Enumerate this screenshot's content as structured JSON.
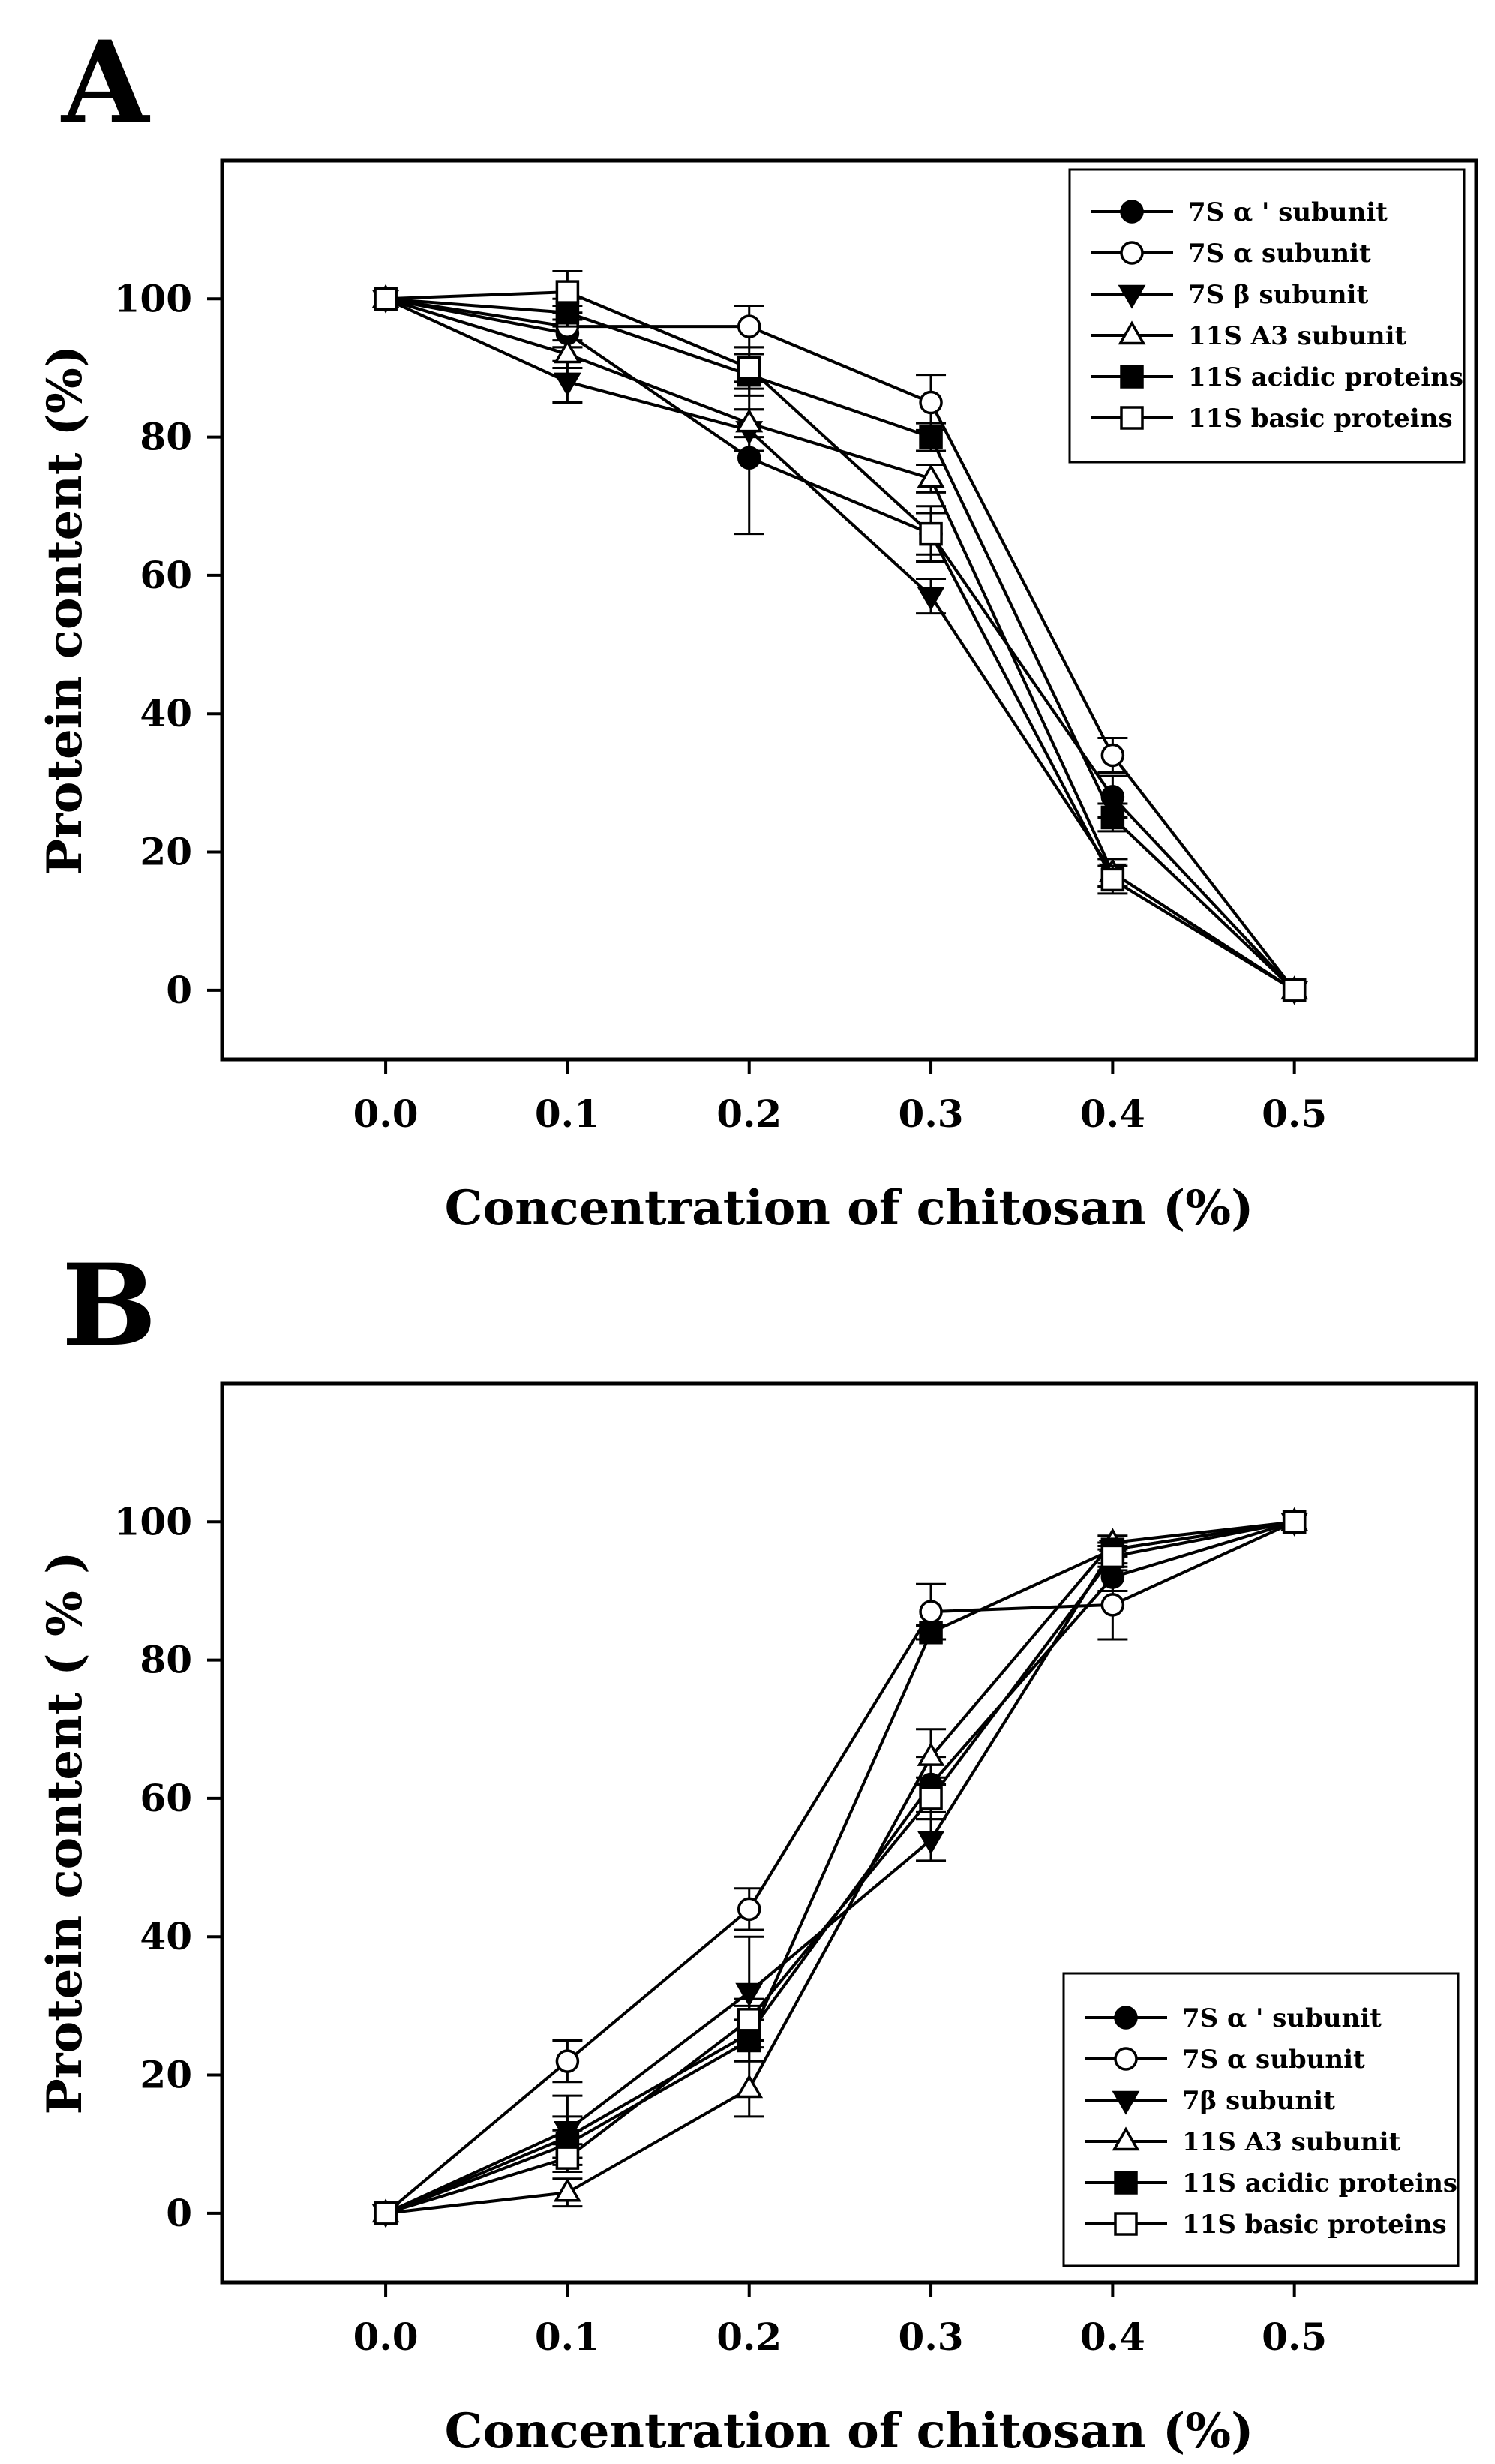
{
  "chart_data": [
    {
      "type": "line",
      "panel_label": "A",
      "xlabel": "Concentration of chitosan (%)",
      "ylabel": "Protein content (%)",
      "x": [
        0.0,
        0.1,
        0.2,
        0.3,
        0.4,
        0.5
      ],
      "x_tick_labels": [
        "0.0",
        "0.1",
        "0.2",
        "0.3",
        "0.4",
        "0.5"
      ],
      "y_ticks": [
        0,
        20,
        40,
        60,
        80,
        100
      ],
      "y_tick_labels": [
        "0",
        "20",
        "40",
        "60",
        "80",
        "100"
      ],
      "xlim": [
        -0.09,
        0.6
      ],
      "ylim": [
        -10,
        120
      ],
      "legend_position": "top-right",
      "series": [
        {
          "name": "7S α ' subunit",
          "marker": "circle-filled",
          "values": [
            100,
            95,
            77,
            66,
            28,
            0
          ],
          "errors": [
            0,
            2,
            11,
            4,
            3,
            0
          ]
        },
        {
          "name": "7S α subunit",
          "marker": "circle-open",
          "values": [
            100,
            96,
            96,
            85,
            34,
            0
          ],
          "errors": [
            0,
            3,
            3,
            4,
            2.5,
            0
          ]
        },
        {
          "name": "7S β subunit",
          "marker": "triangle-down-filled",
          "values": [
            100,
            88,
            81,
            57,
            17,
            0
          ],
          "errors": [
            0,
            3,
            3,
            2.5,
            2,
            0
          ]
        },
        {
          "name": "11S A3 subunit",
          "marker": "triangle-up-open",
          "values": [
            100,
            92,
            82,
            74,
            17,
            0
          ],
          "errors": [
            0,
            2,
            2,
            2,
            2,
            0
          ]
        },
        {
          "name": "11S acidic proteins",
          "marker": "square-filled",
          "values": [
            100,
            98,
            89,
            80,
            25,
            0
          ],
          "errors": [
            0,
            2,
            3,
            2,
            2,
            0
          ]
        },
        {
          "name": "11S basic proteins",
          "marker": "square-open",
          "values": [
            100,
            101,
            90,
            66,
            16,
            0
          ],
          "errors": [
            0,
            3,
            3,
            3,
            2,
            0
          ]
        }
      ]
    },
    {
      "type": "line",
      "panel_label": "B",
      "xlabel": "Concentration of chitosan (%)",
      "ylabel": "Protein content ( % )",
      "x": [
        0.0,
        0.1,
        0.2,
        0.3,
        0.4,
        0.5
      ],
      "x_tick_labels": [
        "0.0",
        "0.1",
        "0.2",
        "0.3",
        "0.4",
        "0.5"
      ],
      "y_ticks": [
        0,
        20,
        40,
        60,
        80,
        100
      ],
      "y_tick_labels": [
        "0",
        "20",
        "40",
        "60",
        "80",
        "100"
      ],
      "xlim": [
        -0.09,
        0.6
      ],
      "ylim": [
        -10,
        120
      ],
      "legend_position": "bottom-right",
      "series": [
        {
          "name": "7S α ' subunit",
          "marker": "circle-filled",
          "values": [
            0,
            11,
            26,
            62,
            92,
            100
          ],
          "errors": [
            0,
            3,
            4,
            4,
            2,
            0
          ]
        },
        {
          "name": "7S α subunit",
          "marker": "circle-open",
          "values": [
            0,
            22,
            44,
            87,
            88,
            100
          ],
          "errors": [
            0,
            3,
            3,
            4,
            5,
            0
          ]
        },
        {
          "name": "7β subunit",
          "marker": "triangle-down-filled",
          "values": [
            0,
            12,
            32,
            54,
            96,
            100
          ],
          "errors": [
            0,
            5,
            8,
            3,
            1,
            0
          ]
        },
        {
          "name": "11S A3 subunit",
          "marker": "triangle-up-open",
          "values": [
            0,
            3,
            18,
            66,
            97,
            100
          ],
          "errors": [
            0,
            2,
            4,
            4,
            1,
            0
          ]
        },
        {
          "name": "11S acidic proteins",
          "marker": "square-filled",
          "values": [
            0,
            10,
            25,
            84,
            96,
            100
          ],
          "errors": [
            0,
            2,
            3,
            1,
            1,
            0
          ]
        },
        {
          "name": "11S basic proteins",
          "marker": "square-open",
          "values": [
            0,
            8,
            28,
            60,
            95,
            100
          ],
          "errors": [
            0,
            2,
            3,
            3,
            1.5,
            0
          ]
        }
      ]
    }
  ]
}
